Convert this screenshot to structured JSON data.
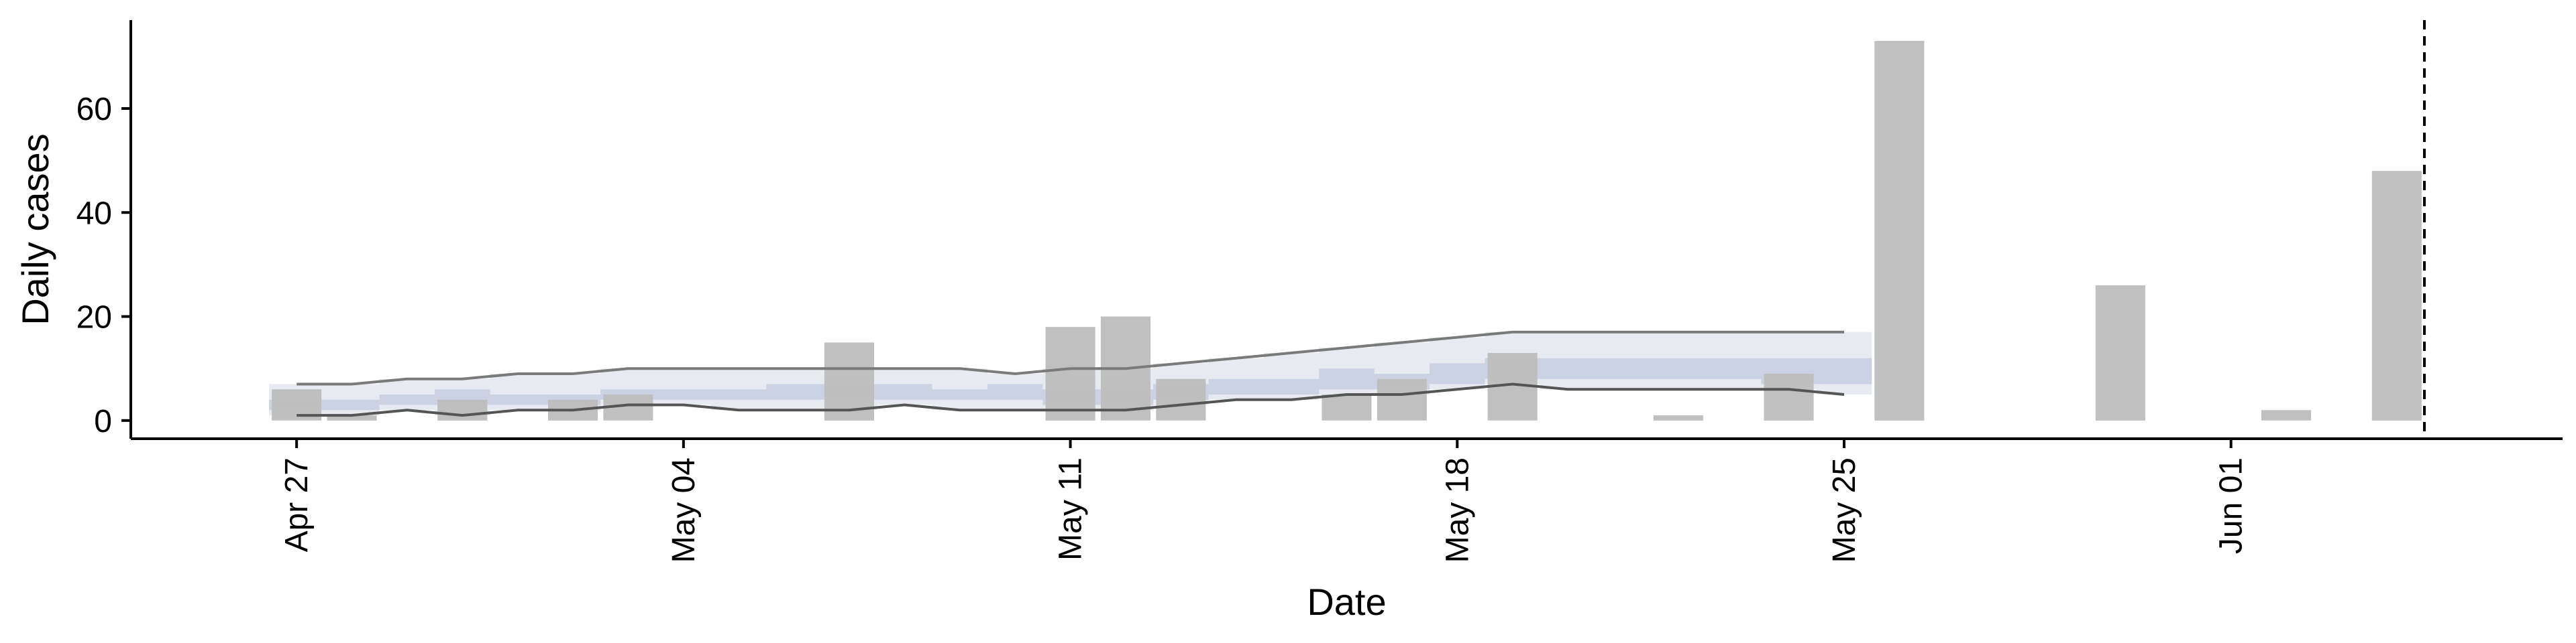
{
  "chart_data": {
    "type": "bar",
    "xlabel": "Date",
    "ylabel": "Daily cases",
    "ylim": [
      -3.5,
      77
    ],
    "yticks": [
      0,
      20,
      40,
      60
    ],
    "x_range": [
      "2020-04-24",
      "2020-06-07"
    ],
    "xticks": [
      {
        "date": "2020-04-27",
        "label": "Apr 27"
      },
      {
        "date": "2020-05-04",
        "label": "May 04"
      },
      {
        "date": "2020-05-11",
        "label": "May 11"
      },
      {
        "date": "2020-05-18",
        "label": "May 18"
      },
      {
        "date": "2020-05-25",
        "label": "May 25"
      },
      {
        "date": "2020-06-01",
        "label": "Jun 01"
      }
    ],
    "grid": false,
    "legend": "none",
    "colors": {
      "bars": "#bdbdbd",
      "interval_outer": "#e8eaf2",
      "interval_inner": "#c8cfe2",
      "bounds": "#7a7a7a",
      "axis": "#000000"
    },
    "bars": [
      {
        "date": "2020-04-27",
        "value": 6
      },
      {
        "date": "2020-04-28",
        "value": 1
      },
      {
        "date": "2020-04-30",
        "value": 4
      },
      {
        "date": "2020-05-02",
        "value": 4
      },
      {
        "date": "2020-05-03",
        "value": 5
      },
      {
        "date": "2020-05-07",
        "value": 15
      },
      {
        "date": "2020-05-11",
        "value": 18
      },
      {
        "date": "2020-05-12",
        "value": 20
      },
      {
        "date": "2020-05-13",
        "value": 8
      },
      {
        "date": "2020-05-16",
        "value": 5
      },
      {
        "date": "2020-05-17",
        "value": 8
      },
      {
        "date": "2020-05-19",
        "value": 13
      },
      {
        "date": "2020-05-22",
        "value": 1
      },
      {
        "date": "2020-05-24",
        "value": 9
      },
      {
        "date": "2020-05-26",
        "value": 73
      },
      {
        "date": "2020-05-30",
        "value": 26
      },
      {
        "date": "2020-06-02",
        "value": 2
      },
      {
        "date": "2020-06-04",
        "value": 48
      }
    ],
    "interval_dates": [
      "2020-04-27",
      "2020-04-28",
      "2020-04-29",
      "2020-04-30",
      "2020-05-01",
      "2020-05-02",
      "2020-05-03",
      "2020-05-04",
      "2020-05-05",
      "2020-05-06",
      "2020-05-07",
      "2020-05-08",
      "2020-05-09",
      "2020-05-10",
      "2020-05-11",
      "2020-05-12",
      "2020-05-13",
      "2020-05-14",
      "2020-05-15",
      "2020-05-16",
      "2020-05-17",
      "2020-05-18",
      "2020-05-19",
      "2020-05-20",
      "2020-05-21",
      "2020-05-22",
      "2020-05-23",
      "2020-05-24",
      "2020-05-25"
    ],
    "outer_upper": [
      7,
      7,
      8,
      8,
      9,
      9,
      10,
      10,
      10,
      10,
      10,
      10,
      10,
      9,
      10,
      10,
      11,
      12,
      13,
      14,
      15,
      16,
      17,
      17,
      17,
      17,
      17,
      17,
      17
    ],
    "outer_lower": [
      1,
      1,
      2,
      1,
      2,
      2,
      3,
      3,
      2,
      2,
      2,
      3,
      2,
      2,
      2,
      2,
      3,
      4,
      4,
      5,
      5,
      6,
      7,
      6,
      6,
      6,
      6,
      6,
      5
    ],
    "inner_upper": [
      4,
      4,
      5,
      6,
      5,
      5,
      6,
      6,
      6,
      7,
      7,
      7,
      6,
      7,
      6,
      6,
      7,
      8,
      8,
      10,
      9,
      11,
      12,
      12,
      12,
      12,
      12,
      12,
      12
    ],
    "inner_lower": [
      2,
      2,
      3,
      3,
      3,
      3,
      4,
      4,
      4,
      4,
      4,
      4,
      4,
      4,
      3,
      3,
      4,
      5,
      5,
      6,
      6,
      7,
      8,
      8,
      8,
      8,
      8,
      7,
      7
    ],
    "vline_date": "2020-06-04"
  }
}
